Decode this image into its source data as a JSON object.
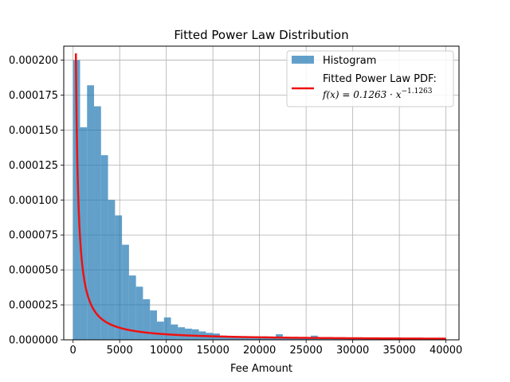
{
  "chart_data": {
    "type": "bar",
    "title": "Fitted Power Law Distribution",
    "xlabel": "Fee Amount",
    "ylabel": "",
    "xlim": [
      -1000,
      41400
    ],
    "ylim": [
      0,
      0.00021
    ],
    "grid": true,
    "legend_position": "top-right",
    "x_ticks": [
      0,
      5000,
      10000,
      15000,
      20000,
      25000,
      30000,
      35000,
      40000
    ],
    "x_tick_labels": [
      "0",
      "5000",
      "10000",
      "15000",
      "20000",
      "25000",
      "30000",
      "35000",
      "40000"
    ],
    "y_ticks": [
      0,
      2.5e-05,
      5e-05,
      7.5e-05,
      0.0001,
      0.000125,
      0.00015,
      0.000175,
      0.0002
    ],
    "y_tick_labels": [
      "0.000000",
      "0.000025",
      "0.000050",
      "0.000075",
      "0.000100",
      "0.000125",
      "0.000150",
      "0.000175",
      "0.000200"
    ],
    "histogram": {
      "name": "Histogram",
      "color": "#1f77b4",
      "alpha": 0.7,
      "bin_start": 0,
      "bin_width": 750,
      "values": [
        0.0002,
        0.000152,
        0.000182,
        0.000167,
        0.000132,
        0.0001,
        8.9e-05,
        6.8e-05,
        4.6e-05,
        3.8e-05,
        2.9e-05,
        2.1e-05,
        1.3e-05,
        1.6e-05,
        1.1e-05,
        9e-06,
        8e-06,
        7.5e-06,
        6e-06,
        5e-06,
        4.5e-06,
        3e-06,
        2.5e-06,
        2e-06,
        2.5e-06,
        2e-06,
        1.5e-06,
        2.5e-06,
        1.8e-06,
        4e-06,
        1.5e-06,
        1.2e-06,
        1e-06,
        1.5e-06,
        3e-06,
        1.5e-06,
        1e-06,
        1.2e-06,
        1e-06,
        8e-07,
        1.2e-06,
        8e-07,
        1.5e-06,
        6e-07,
        5e-07,
        4e-07,
        5e-07,
        3e-07,
        3e-07,
        2e-07,
        2e-07,
        1e-07,
        2e-07,
        1e-07
      ]
    },
    "fit": {
      "name": "Fitted Power Law PDF:",
      "formula_text": "f(x) = 0.1263 · x",
      "formula_exponent": "−1.1263",
      "color": "#ee1111",
      "coefficient": 0.1263,
      "exponent": -1.1263,
      "x_min": 300,
      "x_max": 40000
    }
  }
}
